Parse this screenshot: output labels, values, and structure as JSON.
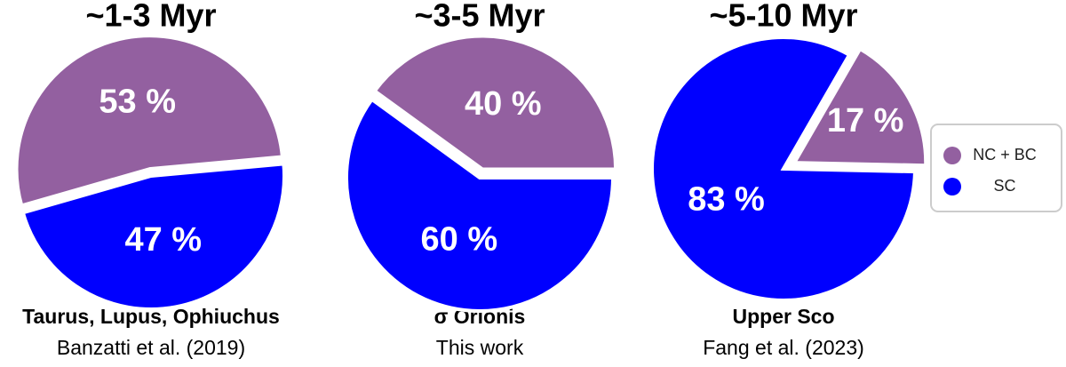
{
  "chart_data": [
    {
      "type": "pie",
      "title": "~1-3 Myr",
      "subtitle": "Taurus, Lupus, Ophiuchus",
      "caption": "Banzatti et al. (2019)",
      "categories": [
        "NC + BC",
        "SC"
      ],
      "values": [
        53,
        47
      ],
      "value_labels": [
        "53 %",
        "47 %"
      ],
      "colors": [
        "#9360a0",
        "#0000ff"
      ]
    },
    {
      "type": "pie",
      "title": "~3-5 Myr",
      "subtitle": "σ Orionis",
      "caption": "This work",
      "categories": [
        "NC + BC",
        "SC"
      ],
      "values": [
        40,
        60
      ],
      "value_labels": [
        "40 %",
        "60 %"
      ],
      "colors": [
        "#9360a0",
        "#0000ff"
      ]
    },
    {
      "type": "pie",
      "title": "~5-10 Myr",
      "subtitle": "Upper Sco",
      "caption": "Fang et al. (2023)",
      "categories": [
        "NC + BC",
        "SC"
      ],
      "values": [
        17,
        83
      ],
      "value_labels": [
        "17 %",
        "83 %"
      ],
      "colors": [
        "#9360a0",
        "#0000ff"
      ]
    }
  ]
}
